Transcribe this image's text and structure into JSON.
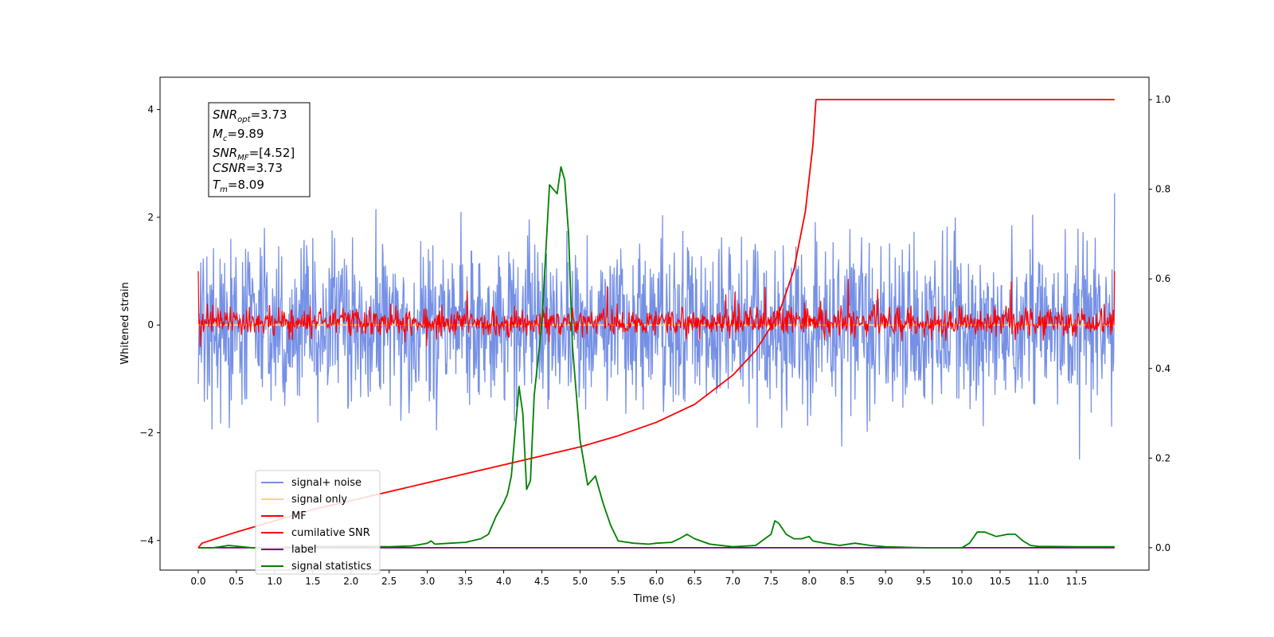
{
  "chart_data": {
    "type": "line",
    "xlabel": "Time (s)",
    "ylabel_left": "Whitened strain",
    "ylabel_right": "",
    "xlim": [
      -0.5,
      12.45
    ],
    "ylim_left": [
      -4.55,
      4.6
    ],
    "ylim_right": [
      -0.05,
      1.05
    ],
    "x_ticks": [
      "0.0",
      "0.5",
      "1.0",
      "1.5",
      "2.0",
      "2.5",
      "3.0",
      "3.5",
      "4.0",
      "4.5",
      "5.0",
      "5.5",
      "6.0",
      "6.5",
      "7.0",
      "7.5",
      "8.0",
      "8.5",
      "9.0",
      "9.5",
      "10.0",
      "10.5",
      "11.0",
      "11.5"
    ],
    "y_ticks_left": [
      "4",
      "2",
      "0",
      "−2",
      "−4"
    ],
    "y_ticks_right": [
      "1.0",
      "0.8",
      "0.6",
      "0.4",
      "0.2",
      "0.0"
    ],
    "grid": false,
    "legend_position": "lower-left",
    "series": [
      {
        "name": "signal+ noise",
        "color": "#7590e6",
        "axis": "left",
        "style": "noise",
        "x_range": [
          0,
          12
        ],
        "amplitude": 4.15,
        "description_points": 1800
      },
      {
        "name": "signal only",
        "color": "#ffd27a",
        "axis": "left",
        "x": [
          0,
          12
        ],
        "y": [
          0,
          0
        ]
      },
      {
        "name": "MF",
        "color": "#ff0000",
        "axis": "left",
        "style": "noise",
        "x_range": [
          0,
          12
        ],
        "amplitude": 1.0,
        "end_values": [
          1.0,
          1.0
        ]
      },
      {
        "name": "cumilative SNR",
        "color": "#ff0000",
        "axis": "right",
        "x": [
          0,
          0.05,
          0.5,
          1.0,
          1.5,
          2.0,
          2.5,
          3.0,
          3.5,
          4.0,
          4.5,
          5.0,
          5.5,
          6.0,
          6.5,
          7.0,
          7.3,
          7.6,
          7.8,
          7.95,
          8.05,
          8.09,
          12.0
        ],
        "y": [
          0.0,
          0.01,
          0.035,
          0.06,
          0.085,
          0.105,
          0.125,
          0.145,
          0.165,
          0.185,
          0.205,
          0.225,
          0.25,
          0.28,
          0.32,
          0.385,
          0.44,
          0.52,
          0.62,
          0.75,
          0.9,
          1.0,
          1.0
        ]
      },
      {
        "name": "label",
        "color": "#7b007b",
        "axis": "right",
        "x": [
          0,
          12
        ],
        "y": [
          0,
          0
        ]
      },
      {
        "name": "signal statistics",
        "color": "#008000",
        "axis": "right",
        "x": [
          0,
          0.2,
          0.4,
          0.7,
          1.0,
          1.5,
          2.0,
          2.5,
          2.8,
          3.0,
          3.05,
          3.1,
          3.3,
          3.5,
          3.7,
          3.8,
          3.9,
          4.0,
          4.05,
          4.1,
          4.2,
          4.25,
          4.3,
          4.35,
          4.4,
          4.5,
          4.6,
          4.65,
          4.7,
          4.75,
          4.8,
          4.85,
          4.9,
          5.0,
          5.1,
          5.2,
          5.3,
          5.4,
          5.5,
          5.7,
          5.9,
          6.0,
          6.2,
          6.3,
          6.4,
          6.5,
          6.7,
          7.0,
          7.3,
          7.5,
          7.55,
          7.6,
          7.7,
          7.8,
          7.9,
          8.0,
          8.05,
          8.2,
          8.4,
          8.6,
          8.8,
          9.0,
          9.5,
          10.0,
          10.1,
          10.2,
          10.3,
          10.45,
          10.6,
          10.7,
          10.8,
          10.9,
          11.0,
          11.5,
          12.0
        ],
        "y": [
          0.0,
          0.0,
          0.005,
          0.0,
          0.0,
          0.002,
          0.003,
          0.002,
          0.004,
          0.01,
          0.015,
          0.008,
          0.01,
          0.012,
          0.02,
          0.03,
          0.07,
          0.1,
          0.12,
          0.16,
          0.36,
          0.3,
          0.13,
          0.15,
          0.34,
          0.5,
          0.81,
          0.8,
          0.79,
          0.85,
          0.82,
          0.7,
          0.45,
          0.24,
          0.14,
          0.16,
          0.1,
          0.05,
          0.015,
          0.01,
          0.008,
          0.01,
          0.012,
          0.02,
          0.03,
          0.02,
          0.008,
          0.002,
          0.005,
          0.03,
          0.06,
          0.055,
          0.03,
          0.02,
          0.02,
          0.025,
          0.015,
          0.01,
          0.005,
          0.01,
          0.005,
          0.002,
          0.0,
          0.0,
          0.01,
          0.035,
          0.035,
          0.025,
          0.03,
          0.03,
          0.015,
          0.005,
          0.003,
          0.002,
          0.002
        ]
      }
    ]
  },
  "info_box": {
    "snr_opt": {
      "sym": "SNR",
      "sub": "opt",
      "val": "=3.73"
    },
    "mc": {
      "sym": "M",
      "sub": "c",
      "val": "=9.89"
    },
    "snr_mf": {
      "sym": "SNR",
      "sub": "MF",
      "val": "=[4.52]"
    },
    "csnr": {
      "sym": "CSNR",
      "sub": "",
      "val": "=3.73"
    },
    "tm": {
      "sym": "T",
      "sub": "m",
      "val": "=8.09"
    }
  },
  "legend": [
    "signal+ noise",
    "signal only",
    "MF",
    "cumilative SNR",
    "label",
    "signal statistics"
  ]
}
